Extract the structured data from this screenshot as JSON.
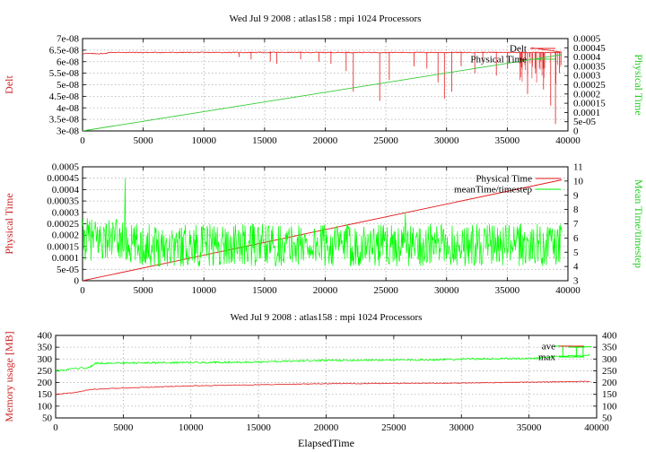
{
  "chart_data": [
    {
      "type": "line",
      "title": "Wed Jul 9 2008 : atlas158 : mpi 1024 Processors",
      "xlabel": "",
      "ylabel": "Delt",
      "y2label": "Physical Time",
      "xlim": [
        0,
        40000
      ],
      "ylim": [
        3e-08,
        7e-08
      ],
      "y2lim": [
        0,
        0.0005
      ],
      "xticks": [
        "0",
        "5000",
        "10000",
        "15000",
        "20000",
        "25000",
        "30000",
        "35000",
        "40000"
      ],
      "yticks": [
        "3e-08",
        "3.5e-08",
        "4e-08",
        "4.5e-08",
        "5e-08",
        "5.5e-08",
        "6e-08",
        "6.5e-08",
        "7e-08"
      ],
      "y2ticks": [
        "0",
        "5e-05",
        "0.0001",
        "0.00015",
        "0.0002",
        "0.00025",
        "0.0003",
        "0.00035",
        "0.0004",
        "0.00045",
        "0.0005"
      ],
      "grid": true,
      "legend_position": "top-right",
      "series": [
        {
          "name": "Delt",
          "color": "#e41a1c",
          "axis": "left",
          "baseline": 6.4e-08,
          "xstart": 0,
          "xend": 39500,
          "dips": [
            [
              12900,
              6.2e-08
            ],
            [
              13900,
              6.1e-08
            ],
            [
              15500,
              6e-08
            ],
            [
              16000,
              5.9e-08
            ],
            [
              18000,
              6.1e-08
            ],
            [
              19500,
              6e-08
            ],
            [
              20500,
              5.9e-08
            ],
            [
              21700,
              5.6e-08
            ],
            [
              22300,
              4.7e-08
            ],
            [
              24500,
              4.3e-08
            ],
            [
              25300,
              5.2e-08
            ],
            [
              27300,
              5.8e-08
            ],
            [
              28400,
              5.7e-08
            ],
            [
              29300,
              5.1e-08
            ],
            [
              29800,
              4.4e-08
            ],
            [
              30400,
              4.7e-08
            ],
            [
              31200,
              5.8e-08
            ],
            [
              32300,
              5.5e-08
            ],
            [
              33000,
              6e-08
            ],
            [
              34100,
              5.4e-08
            ],
            [
              35000,
              5.7e-08
            ],
            [
              36100,
              5.9e-08
            ],
            [
              36700,
              4.6e-08
            ],
            [
              37300,
              5.5e-08
            ],
            [
              38000,
              4.8e-08
            ],
            [
              38600,
              4.1e-08
            ],
            [
              39000,
              3.3e-08
            ],
            [
              39300,
              5.5e-08
            ]
          ],
          "note_end_spike": 6.6e-08
        },
        {
          "name": "Physical Time",
          "color": "#33cc33",
          "axis": "right",
          "points": [
            [
              0,
              0
            ],
            [
              39500,
              0.000413
            ]
          ]
        }
      ]
    },
    {
      "type": "line",
      "title": "",
      "xlabel": "",
      "ylabel": "Physical Time",
      "y2label": "Mean Time/timestep",
      "xlim": [
        0,
        40000
      ],
      "ylim": [
        0,
        0.0005
      ],
      "y2lim": [
        3,
        11
      ],
      "xticks": [
        "0",
        "5000",
        "10000",
        "15000",
        "20000",
        "25000",
        "30000",
        "35000",
        "40000"
      ],
      "yticks": [
        "0",
        "5e-05",
        "0.0001",
        "0.00015",
        "0.0002",
        "0.00025",
        "0.0003",
        "0.00035",
        "0.0004",
        "0.00045",
        "0.0005"
      ],
      "y2ticks": [
        "3",
        "4",
        "5",
        "6",
        "7",
        "8",
        "9",
        "10",
        "11"
      ],
      "grid": true,
      "legend_position": "top-right",
      "series": [
        {
          "name": "Physical Time",
          "color": "#e41a1c",
          "axis": "left",
          "points": [
            [
              0,
              0
            ],
            [
              39500,
              0.000443
            ]
          ]
        },
        {
          "name": "meanTime/timestep",
          "color": "#00ff00",
          "axis": "right",
          "level": 5.5,
          "range": [
            4.3,
            7.3
          ],
          "xstart": 0,
          "xend": 39500,
          "spikes": [
            [
              3500,
              10.2
            ],
            [
              26600,
              7.8
            ]
          ]
        }
      ]
    },
    {
      "type": "line",
      "title": "Wed Jul 9 2008 : atlas158 : mpi 1024 Processors",
      "xlabel": "ElapsedTime",
      "ylabel": "Memory usage [MB]",
      "xlim": [
        0,
        40000
      ],
      "ylim": [
        50,
        400
      ],
      "y2lim": [
        50,
        400
      ],
      "xticks": [
        "0",
        "5000",
        "10000",
        "15000",
        "20000",
        "25000",
        "30000",
        "35000",
        "40000"
      ],
      "yticks": [
        "50",
        "100",
        "150",
        "200",
        "250",
        "300",
        "350",
        "400"
      ],
      "y2ticks": [
        "50",
        "100",
        "150",
        "200",
        "250",
        "300",
        "350",
        "400"
      ],
      "grid": true,
      "legend_position": "top-right",
      "series": [
        {
          "name": "ave",
          "color": "#e41a1c",
          "points": [
            [
              0,
              150
            ],
            [
              1500,
              158
            ],
            [
              2500,
              170
            ],
            [
              5000,
              177
            ],
            [
              10000,
              186
            ],
            [
              15000,
              191
            ],
            [
              20000,
              195
            ],
            [
              30000,
              198
            ],
            [
              39500,
              205
            ]
          ]
        },
        {
          "name": "max",
          "color": "#00ff00",
          "points": [
            [
              0,
              250
            ],
            [
              2500,
              265
            ],
            [
              3000,
              282
            ],
            [
              15000,
              287
            ],
            [
              20000,
              294
            ],
            [
              28000,
              297
            ],
            [
              30000,
              300
            ],
            [
              35000,
              302
            ],
            [
              37000,
              310
            ],
            [
              39500,
              316
            ]
          ],
          "upper_spikes": [
            [
              37500,
              355
            ],
            [
              38500,
              350
            ],
            [
              39000,
              352
            ]
          ]
        }
      ]
    }
  ]
}
